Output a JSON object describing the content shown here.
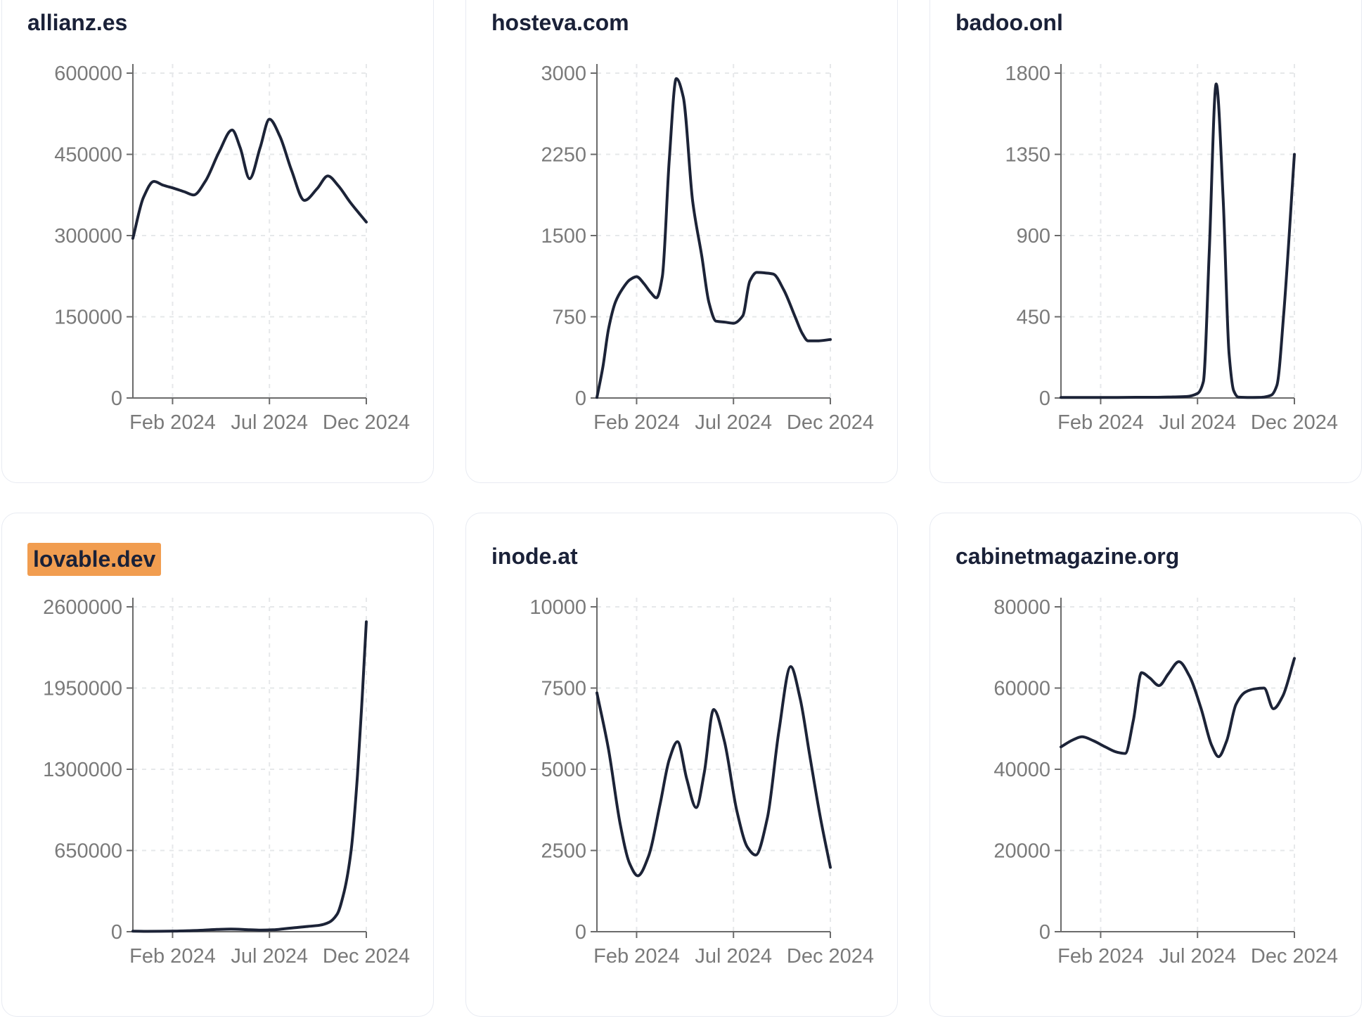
{
  "style": {
    "background": "#ffffff",
    "card_background": "#ffffff",
    "card_border_color": "#e8ebf2",
    "title_color": "#1a2138",
    "highlight_color": "#f19d50",
    "line_color": "#1c2337",
    "axis_color": "#6b6b6b",
    "tick_label_color": "#7a7a7a",
    "grid_color": "#e6e8ea"
  },
  "chart_data": [
    {
      "type": "line",
      "title": "allianz.es",
      "highlighted": false,
      "x_tick_labels": [
        "Feb 2024",
        "Jul 2024",
        "Dec 2024"
      ],
      "x_tick_positions": [
        0.17,
        0.585,
        1.0
      ],
      "y_ticks": [
        0,
        150000,
        300000,
        450000,
        600000
      ],
      "ylim": [
        0,
        600000
      ],
      "grid": true,
      "points": [
        [
          0,
          295000
        ],
        [
          0.045,
          370000
        ],
        [
          0.09,
          400000
        ],
        [
          0.13,
          393000
        ],
        [
          0.17,
          388000
        ],
        [
          0.22,
          381000
        ],
        [
          0.26,
          375000
        ],
        [
          0.31,
          400000
        ],
        [
          0.37,
          455000
        ],
        [
          0.425,
          495000
        ],
        [
          0.46,
          462000
        ],
        [
          0.5,
          405000
        ],
        [
          0.545,
          462000
        ],
        [
          0.585,
          515000
        ],
        [
          0.63,
          483000
        ],
        [
          0.68,
          420000
        ],
        [
          0.735,
          365000
        ],
        [
          0.79,
          387000
        ],
        [
          0.835,
          410000
        ],
        [
          0.88,
          392000
        ],
        [
          0.93,
          362000
        ],
        [
          1,
          325000
        ]
      ]
    },
    {
      "type": "line",
      "title": "hosteva.com",
      "highlighted": false,
      "x_tick_labels": [
        "Feb 2024",
        "Jul 2024",
        "Dec 2024"
      ],
      "x_tick_positions": [
        0.17,
        0.585,
        1.0
      ],
      "y_ticks": [
        0,
        750,
        1500,
        2250,
        3000
      ],
      "ylim": [
        0,
        3000
      ],
      "grid": true,
      "points": [
        [
          0,
          5
        ],
        [
          0.025,
          280
        ],
        [
          0.05,
          640
        ],
        [
          0.08,
          890
        ],
        [
          0.11,
          1010
        ],
        [
          0.14,
          1090
        ],
        [
          0.17,
          1120
        ],
        [
          0.2,
          1060
        ],
        [
          0.23,
          975
        ],
        [
          0.255,
          925
        ],
        [
          0.28,
          1120
        ],
        [
          0.31,
          2200
        ],
        [
          0.34,
          2950
        ],
        [
          0.37,
          2780
        ],
        [
          0.41,
          1820
        ],
        [
          0.45,
          1300
        ],
        [
          0.48,
          880
        ],
        [
          0.51,
          710
        ],
        [
          0.55,
          700
        ],
        [
          0.585,
          690
        ],
        [
          0.625,
          760
        ],
        [
          0.655,
          1080
        ],
        [
          0.685,
          1160
        ],
        [
          0.72,
          1155
        ],
        [
          0.755,
          1145
        ],
        [
          0.8,
          1000
        ],
        [
          0.85,
          745
        ],
        [
          0.88,
          595
        ],
        [
          0.905,
          527
        ],
        [
          0.95,
          528
        ],
        [
          1,
          540
        ]
      ]
    },
    {
      "type": "line",
      "title": "badoo.onl",
      "highlighted": false,
      "x_tick_labels": [
        "Feb 2024",
        "Jul 2024",
        "Dec 2024"
      ],
      "x_tick_positions": [
        0.17,
        0.585,
        1.0
      ],
      "y_ticks": [
        0,
        450,
        900,
        1350,
        1800
      ],
      "ylim": [
        0,
        1800
      ],
      "grid": true,
      "points": [
        [
          0,
          3
        ],
        [
          0.08,
          3
        ],
        [
          0.16,
          3
        ],
        [
          0.24,
          3
        ],
        [
          0.32,
          4
        ],
        [
          0.4,
          4
        ],
        [
          0.48,
          6
        ],
        [
          0.54,
          8
        ],
        [
          0.585,
          25
        ],
        [
          0.61,
          90
        ],
        [
          0.635,
          800
        ],
        [
          0.665,
          1740
        ],
        [
          0.695,
          1100
        ],
        [
          0.72,
          250
        ],
        [
          0.74,
          40
        ],
        [
          0.76,
          5
        ],
        [
          0.82,
          3
        ],
        [
          0.86,
          4
        ],
        [
          0.9,
          15
        ],
        [
          0.925,
          70
        ],
        [
          0.955,
          480
        ],
        [
          1,
          1350
        ]
      ]
    },
    {
      "type": "line",
      "title": "lovable.dev",
      "highlighted": true,
      "x_tick_labels": [
        "Feb 2024",
        "Jul 2024",
        "Dec 2024"
      ],
      "x_tick_positions": [
        0.17,
        0.585,
        1.0
      ],
      "y_ticks": [
        0,
        650000,
        1300000,
        1950000,
        2600000
      ],
      "ylim": [
        0,
        2600000
      ],
      "grid": true,
      "points": [
        [
          0,
          4000
        ],
        [
          0.06,
          3000
        ],
        [
          0.12,
          3500
        ],
        [
          0.18,
          5000
        ],
        [
          0.24,
          8000
        ],
        [
          0.3,
          12000
        ],
        [
          0.36,
          18000
        ],
        [
          0.42,
          21000
        ],
        [
          0.48,
          17000
        ],
        [
          0.54,
          13000
        ],
        [
          0.6,
          15000
        ],
        [
          0.65,
          24000
        ],
        [
          0.7,
          33000
        ],
        [
          0.75,
          42000
        ],
        [
          0.8,
          52000
        ],
        [
          0.84,
          75000
        ],
        [
          0.875,
          140000
        ],
        [
          0.905,
          320000
        ],
        [
          0.935,
          650000
        ],
        [
          0.962,
          1250000
        ],
        [
          0.983,
          1900000
        ],
        [
          1,
          2480000
        ]
      ]
    },
    {
      "type": "line",
      "title": "inode.at",
      "highlighted": false,
      "x_tick_labels": [
        "Feb 2024",
        "Jul 2024",
        "Dec 2024"
      ],
      "x_tick_positions": [
        0.17,
        0.585,
        1.0
      ],
      "y_ticks": [
        0,
        2500,
        5000,
        7500,
        10000
      ],
      "ylim": [
        0,
        10000
      ],
      "grid": true,
      "points": [
        [
          0,
          7350
        ],
        [
          0.05,
          5600
        ],
        [
          0.1,
          3300
        ],
        [
          0.14,
          2100
        ],
        [
          0.175,
          1720
        ],
        [
          0.22,
          2300
        ],
        [
          0.27,
          3900
        ],
        [
          0.31,
          5300
        ],
        [
          0.345,
          5850
        ],
        [
          0.385,
          4700
        ],
        [
          0.425,
          3820
        ],
        [
          0.46,
          4900
        ],
        [
          0.5,
          6840
        ],
        [
          0.545,
          5900
        ],
        [
          0.6,
          3700
        ],
        [
          0.645,
          2600
        ],
        [
          0.68,
          2360
        ],
        [
          0.73,
          3500
        ],
        [
          0.78,
          6200
        ],
        [
          0.83,
          8160
        ],
        [
          0.87,
          7200
        ],
        [
          0.91,
          5500
        ],
        [
          0.955,
          3600
        ],
        [
          1,
          1980
        ]
      ]
    },
    {
      "type": "line",
      "title": "cabinetmagazine.org",
      "highlighted": false,
      "x_tick_labels": [
        "Feb 2024",
        "Jul 2024",
        "Dec 2024"
      ],
      "x_tick_positions": [
        0.17,
        0.585,
        1.0
      ],
      "y_ticks": [
        0,
        20000,
        40000,
        60000,
        80000
      ],
      "ylim": [
        0,
        80000
      ],
      "grid": true,
      "points": [
        [
          0,
          45500
        ],
        [
          0.05,
          47200
        ],
        [
          0.09,
          48000
        ],
        [
          0.14,
          47000
        ],
        [
          0.19,
          45500
        ],
        [
          0.24,
          44200
        ],
        [
          0.275,
          43900
        ],
        [
          0.31,
          52000
        ],
        [
          0.345,
          63800
        ],
        [
          0.38,
          62500
        ],
        [
          0.42,
          60600
        ],
        [
          0.46,
          63500
        ],
        [
          0.505,
          66500
        ],
        [
          0.55,
          63000
        ],
        [
          0.6,
          55000
        ],
        [
          0.645,
          46000
        ],
        [
          0.675,
          43100
        ],
        [
          0.71,
          47000
        ],
        [
          0.75,
          56000
        ],
        [
          0.79,
          59000
        ],
        [
          0.83,
          59800
        ],
        [
          0.87,
          60000
        ],
        [
          0.91,
          54900
        ],
        [
          0.95,
          58000
        ],
        [
          1,
          67300
        ]
      ]
    }
  ]
}
